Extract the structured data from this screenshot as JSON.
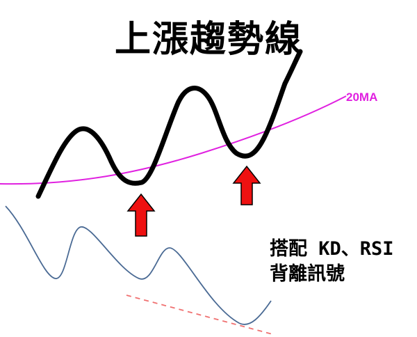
{
  "title": "上漲趨勢線",
  "ma_label": "20MA",
  "note": {
    "line1": "搭配 KD、RSI",
    "line2": "背離訊號"
  },
  "colors": {
    "price_line": "#000000",
    "ma_line": "#e020e0",
    "indicator_line": "#4a6a94",
    "divergence_line": "#f07070",
    "arrow_fill": "#ee1111",
    "arrow_stroke": "#000000"
  },
  "icons": {
    "arrow": "red-up-arrow-icon"
  }
}
